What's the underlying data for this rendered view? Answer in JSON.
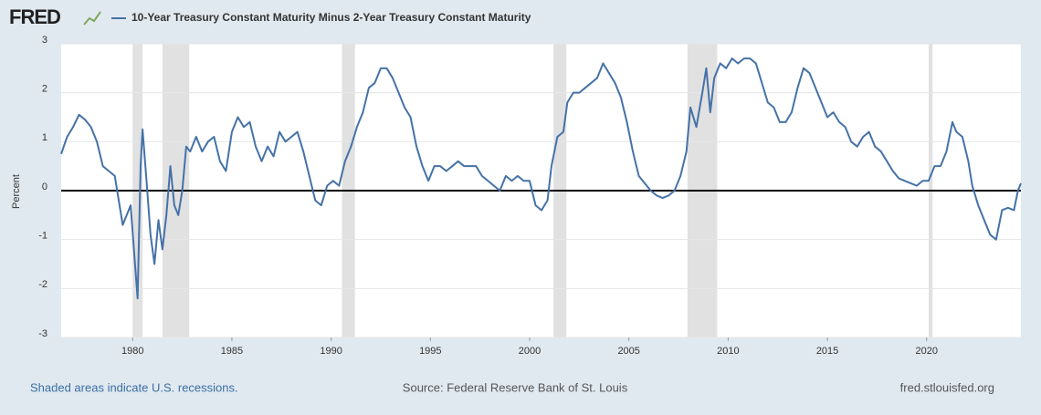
{
  "chart_data": {
    "type": "line",
    "logo": "FRED",
    "y_label": "Percent",
    "footer_left": "Shaded areas indicate U.S. recessions.",
    "footer_center": "Source: Federal Reserve Bank of St. Louis",
    "footer_right": "fred.stlouisfed.org",
    "xlim": [
      1976.4,
      2024.75
    ],
    "ylim": [
      -3,
      3
    ],
    "xticks": [
      1980,
      1985,
      1990,
      1995,
      2000,
      2005,
      2010,
      2015,
      2020
    ],
    "yticks": [
      -3,
      -2,
      -1,
      0,
      1,
      2,
      3
    ],
    "grid": true,
    "recessions": [
      [
        1980.0,
        1980.5
      ],
      [
        1981.5,
        1982.85
      ],
      [
        1990.55,
        1991.2
      ],
      [
        2001.2,
        2001.85
      ],
      [
        2007.95,
        2009.45
      ],
      [
        2020.1,
        2020.3
      ]
    ],
    "x": [
      1976.4,
      1976.7,
      1977.0,
      1977.3,
      1977.6,
      1977.9,
      1978.2,
      1978.5,
      1978.8,
      1979.1,
      1979.3,
      1979.5,
      1979.7,
      1979.9,
      1980.1,
      1980.25,
      1980.4,
      1980.5,
      1980.7,
      1980.9,
      1981.1,
      1981.3,
      1981.5,
      1981.7,
      1981.9,
      1982.1,
      1982.3,
      1982.5,
      1982.7,
      1982.9,
      1983.2,
      1983.5,
      1983.8,
      1984.1,
      1984.4,
      1984.7,
      1985.0,
      1985.3,
      1985.6,
      1985.9,
      1986.2,
      1986.5,
      1986.8,
      1987.1,
      1987.4,
      1987.7,
      1988.0,
      1988.3,
      1988.6,
      1988.9,
      1989.2,
      1989.5,
      1989.8,
      1990.1,
      1990.4,
      1990.7,
      1991.0,
      1991.3,
      1991.6,
      1991.9,
      1992.2,
      1992.5,
      1992.8,
      1993.1,
      1993.4,
      1993.7,
      1994.0,
      1994.3,
      1994.6,
      1994.9,
      1995.2,
      1995.5,
      1995.8,
      1996.1,
      1996.4,
      1996.7,
      1997.0,
      1997.3,
      1997.6,
      1997.9,
      1998.2,
      1998.5,
      1998.8,
      1999.1,
      1999.4,
      1999.7,
      2000.0,
      2000.3,
      2000.6,
      2000.9,
      2001.1,
      2001.4,
      2001.7,
      2001.9,
      2002.2,
      2002.5,
      2002.8,
      2003.1,
      2003.4,
      2003.7,
      2004.0,
      2004.3,
      2004.6,
      2004.9,
      2005.2,
      2005.5,
      2005.8,
      2006.1,
      2006.4,
      2006.7,
      2007.0,
      2007.3,
      2007.6,
      2007.9,
      2008.1,
      2008.4,
      2008.7,
      2008.9,
      2009.1,
      2009.3,
      2009.6,
      2009.9,
      2010.2,
      2010.5,
      2010.8,
      2011.1,
      2011.4,
      2011.7,
      2012.0,
      2012.3,
      2012.6,
      2012.9,
      2013.2,
      2013.5,
      2013.8,
      2014.1,
      2014.4,
      2014.7,
      2015.0,
      2015.3,
      2015.6,
      2015.9,
      2016.2,
      2016.5,
      2016.8,
      2017.1,
      2017.4,
      2017.7,
      2018.0,
      2018.3,
      2018.6,
      2018.9,
      2019.2,
      2019.5,
      2019.8,
      2020.1,
      2020.4,
      2020.7,
      2021.0,
      2021.3,
      2021.5,
      2021.8,
      2022.1,
      2022.3,
      2022.6,
      2022.9,
      2023.2,
      2023.5,
      2023.8,
      2024.1,
      2024.4,
      2024.6,
      2024.75
    ],
    "series": [
      {
        "name": "10-Year Treasury Constant Maturity Minus 2-Year Treasury Constant Maturity",
        "color": "#4572a7",
        "values": [
          0.75,
          1.1,
          1.3,
          1.55,
          1.45,
          1.3,
          1.0,
          0.5,
          0.4,
          0.3,
          -0.2,
          -0.7,
          -0.5,
          -0.3,
          -1.4,
          -2.2,
          0.5,
          1.25,
          0.2,
          -0.9,
          -1.5,
          -0.6,
          -1.2,
          -0.5,
          0.5,
          -0.3,
          -0.5,
          0.0,
          0.9,
          0.8,
          1.1,
          0.8,
          1.0,
          1.1,
          0.6,
          0.4,
          1.2,
          1.5,
          1.3,
          1.4,
          0.9,
          0.6,
          0.9,
          0.7,
          1.2,
          1.0,
          1.1,
          1.2,
          0.8,
          0.3,
          -0.2,
          -0.3,
          0.1,
          0.2,
          0.1,
          0.6,
          0.9,
          1.3,
          1.6,
          2.1,
          2.2,
          2.5,
          2.5,
          2.3,
          2.0,
          1.7,
          1.5,
          0.9,
          0.5,
          0.2,
          0.5,
          0.5,
          0.4,
          0.5,
          0.6,
          0.5,
          0.5,
          0.5,
          0.3,
          0.2,
          0.1,
          0.0,
          0.3,
          0.2,
          0.3,
          0.2,
          0.2,
          -0.3,
          -0.4,
          -0.2,
          0.5,
          1.1,
          1.2,
          1.8,
          2.0,
          2.0,
          2.1,
          2.2,
          2.3,
          2.6,
          2.4,
          2.2,
          1.9,
          1.4,
          0.8,
          0.3,
          0.15,
          0.0,
          -0.1,
          -0.15,
          -0.1,
          0.0,
          0.3,
          0.8,
          1.7,
          1.3,
          2.0,
          2.5,
          1.6,
          2.3,
          2.6,
          2.5,
          2.7,
          2.6,
          2.7,
          2.7,
          2.6,
          2.2,
          1.8,
          1.7,
          1.4,
          1.4,
          1.6,
          2.1,
          2.5,
          2.4,
          2.1,
          1.8,
          1.5,
          1.6,
          1.4,
          1.3,
          1.0,
          0.9,
          1.1,
          1.2,
          0.9,
          0.8,
          0.6,
          0.4,
          0.25,
          0.2,
          0.15,
          0.1,
          0.2,
          0.2,
          0.5,
          0.5,
          0.8,
          1.4,
          1.2,
          1.1,
          0.6,
          0.1,
          -0.3,
          -0.6,
          -0.9,
          -1.0,
          -0.4,
          -0.35,
          -0.4,
          0.0,
          0.15
        ]
      }
    ]
  }
}
